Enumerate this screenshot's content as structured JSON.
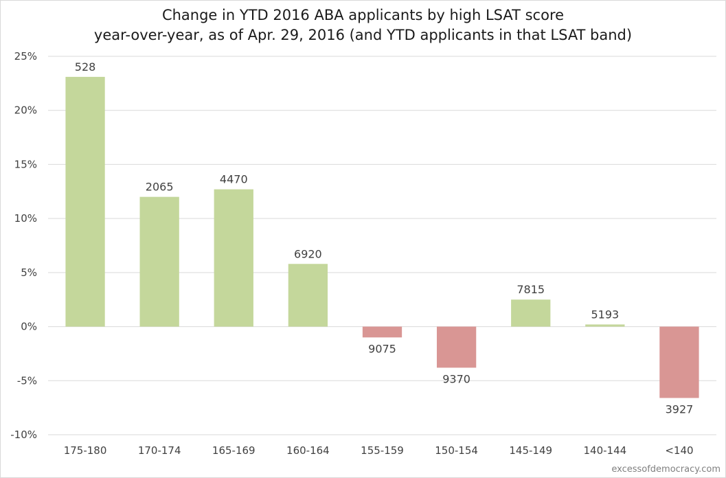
{
  "chart_data": {
    "type": "bar",
    "title": "Change in YTD 2016 ABA applicants by high LSAT score",
    "subtitle": "year-over-year, as of Apr. 29, 2016 (and YTD applicants in that LSAT band)",
    "xlabel": "",
    "ylabel": "",
    "categories": [
      "175-180",
      "170-174",
      "165-169",
      "160-164",
      "155-159",
      "150-154",
      "145-149",
      "140-144",
      "<140"
    ],
    "values": [
      23.1,
      12.0,
      12.7,
      5.8,
      -1.0,
      -3.8,
      2.5,
      0.2,
      -6.6
    ],
    "data_labels": [
      "528",
      "2065",
      "4470",
      "6920",
      "9075",
      "9370",
      "7815",
      "5193",
      "3927"
    ],
    "ylim": [
      -10,
      25
    ],
    "yticks": [
      25,
      20,
      15,
      10,
      5,
      0,
      -5,
      -10
    ],
    "ytick_labels": [
      "25%",
      "20%",
      "15%",
      "10%",
      "5%",
      "0%",
      "-5%",
      "-10%"
    ],
    "grid": true,
    "legend": "none",
    "colors": {
      "positive": "#c4d79b",
      "negative": "#d99694",
      "grid": "#d9d9d9",
      "text": "#404040"
    }
  },
  "credit": "excessofdemocracy.com"
}
